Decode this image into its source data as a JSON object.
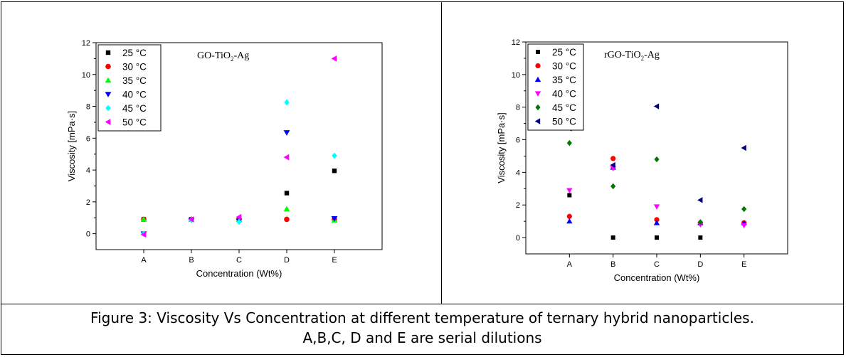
{
  "caption": {
    "line1": "Figure 3: Viscosity Vs Concentration at different temperature of ternary hybrid nanoparticles.",
    "line2": "A,B,C, D and E are serial dilutions"
  },
  "chart_data": [
    {
      "type": "scatter",
      "title": "GO-TiO₂-Ag",
      "xlabel": "Concentration (Wt%)",
      "ylabel": "Viscosity [mPa·s]",
      "categories": [
        "A",
        "B",
        "C",
        "D",
        "E"
      ],
      "ylim": [
        -1,
        12
      ],
      "yticks": [
        0,
        2,
        4,
        6,
        8,
        10,
        12
      ],
      "legend_position": "top-left",
      "grid": false,
      "series": [
        {
          "name": "25 °C",
          "marker": "square",
          "color": "#000000",
          "values": [
            0.9,
            0.9,
            0.9,
            2.55,
            3.95
          ]
        },
        {
          "name": "30 °C",
          "marker": "circle",
          "color": "#ff0000",
          "values": [
            0.9,
            0.9,
            0.9,
            0.9,
            0.9
          ]
        },
        {
          "name": "35 °C",
          "marker": "triangle-up",
          "color": "#00ff00",
          "values": [
            0.9,
            0.9,
            0.9,
            1.55,
            0.85
          ]
        },
        {
          "name": "40 °C",
          "marker": "triangle-down",
          "color": "#0000ff",
          "values": [
            0.0,
            0.85,
            0.8,
            6.35,
            0.95
          ]
        },
        {
          "name": "45 °C",
          "marker": "diamond",
          "color": "#00ffff",
          "values": [
            0.0,
            0.85,
            0.75,
            8.25,
            4.9
          ]
        },
        {
          "name": "50 °C",
          "marker": "triangle-left",
          "color": "#ff00ff",
          "values": [
            -0.05,
            0.9,
            1.05,
            4.8,
            11.0
          ]
        }
      ]
    },
    {
      "type": "scatter",
      "title": "rGO-TiO₂-Ag",
      "xlabel": "Concentration (Wt%)",
      "ylabel": "Viscosity [mPa·s]",
      "categories": [
        "A",
        "B",
        "C",
        "D",
        "E"
      ],
      "ylim": [
        -1,
        12
      ],
      "yticks": [
        0,
        2,
        4,
        6,
        8,
        10,
        12
      ],
      "legend_position": "top-left",
      "grid": false,
      "series": [
        {
          "name": "25 °C",
          "marker": "square",
          "color": "#000000",
          "values": [
            2.6,
            0.0,
            0.0,
            0.0,
            0.9
          ]
        },
        {
          "name": "30 °C",
          "marker": "circle",
          "color": "#ff0000",
          "values": [
            1.3,
            4.85,
            1.1,
            0.9,
            0.9
          ]
        },
        {
          "name": "35 °C",
          "marker": "triangle-up",
          "color": "#0000ff",
          "values": [
            1.0,
            4.3,
            0.9,
            0.9,
            0.9
          ]
        },
        {
          "name": "40 °C",
          "marker": "triangle-down",
          "color": "#ff00ff",
          "values": [
            2.9,
            4.25,
            1.9,
            0.8,
            0.75
          ]
        },
        {
          "name": "45 °C",
          "marker": "diamond",
          "color": "#007700",
          "values": [
            5.8,
            3.15,
            4.8,
            0.95,
            1.75
          ]
        },
        {
          "name": "50 °C",
          "marker": "triangle-left",
          "color": "#000080",
          "values": [
            6.7,
            4.45,
            8.05,
            2.3,
            5.5
          ]
        }
      ]
    }
  ]
}
